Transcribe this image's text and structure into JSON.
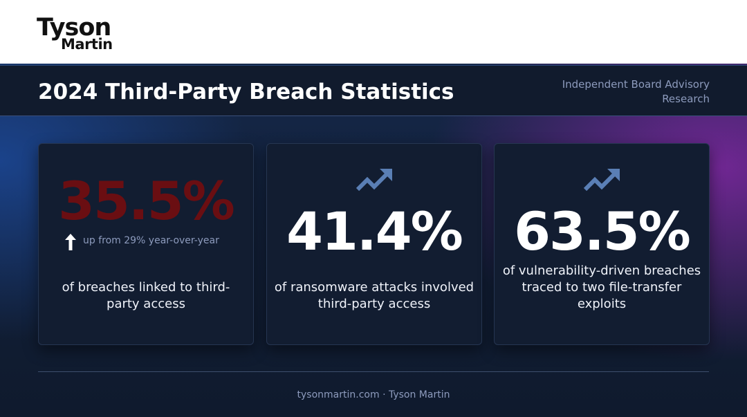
{
  "brand": {
    "logo_line1": "Tyson",
    "logo_line2": "Martin"
  },
  "header": {
    "title": "2024 Third-Party Breach Statistics",
    "subtitle": "Independent Board Advisory Research"
  },
  "cards": [
    {
      "value": "35.5%",
      "note": "up from 29% year-over-year",
      "description": "of breaches linked to third-party access",
      "value_color": "#6a0e12"
    },
    {
      "value": "41.4%",
      "icon": "trend-up-icon",
      "description": "of ransomware attacks involved third-party access"
    },
    {
      "value": "63.5%",
      "icon": "trend-up-icon",
      "description": "of vulnerability-driven breaches traced to two file-transfer exploits"
    }
  ],
  "footer": {
    "text": "tysonmartin.com · Tyson Martin"
  },
  "colors": {
    "accent_purple": "#8a28aa",
    "accent_blue": "#1e50aa",
    "icon_blue": "#5a7fb5",
    "muted_text": "#8d9bbd"
  }
}
